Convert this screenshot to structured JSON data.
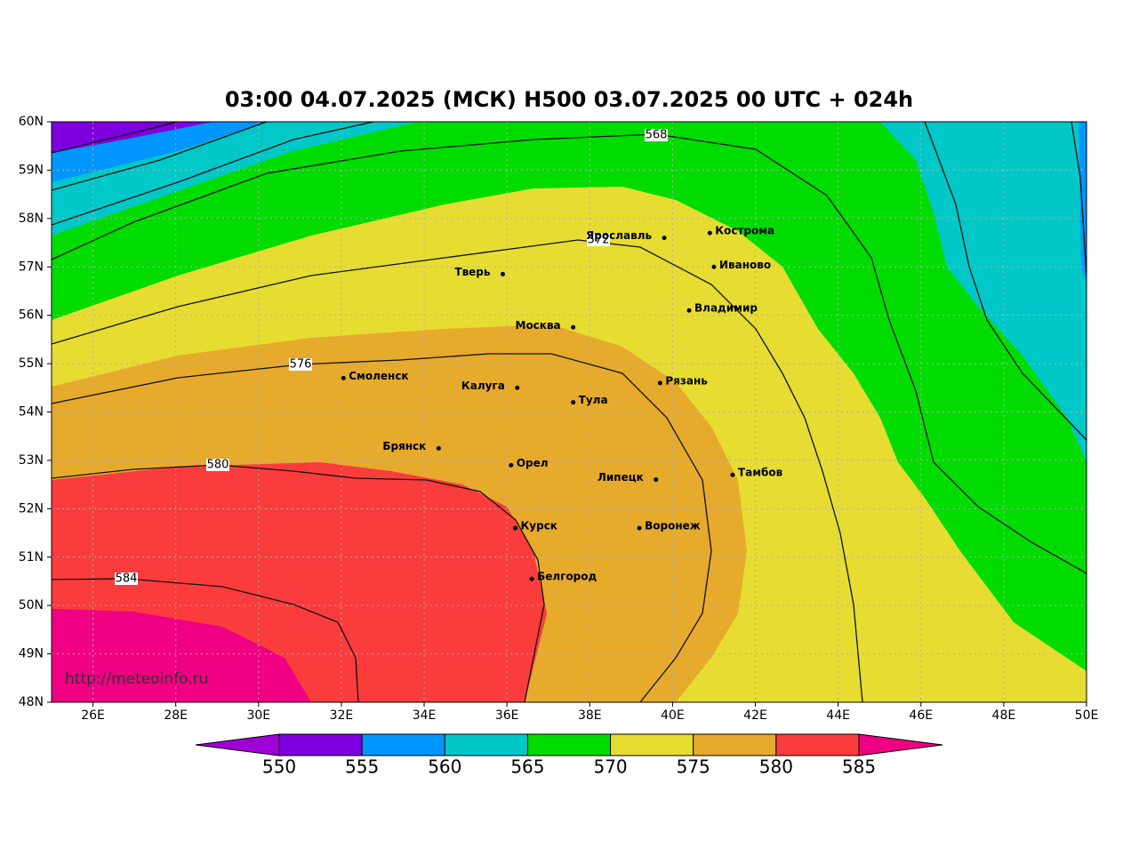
{
  "title": "03:00 04.07.2025 (МСК) H500  03.07.2025 00 UTC + 024h",
  "watermark": "http://meteoinfo.ru",
  "map": {
    "lonlim": [
      25,
      50
    ],
    "latlim": [
      48,
      60
    ],
    "lon_ticks": [
      {
        "value": 26,
        "label": "26E"
      },
      {
        "value": 28,
        "label": "28E"
      },
      {
        "value": 30,
        "label": "30E"
      },
      {
        "value": 32,
        "label": "32E"
      },
      {
        "value": 34,
        "label": "34E"
      },
      {
        "value": 36,
        "label": "36E"
      },
      {
        "value": 38,
        "label": "38E"
      },
      {
        "value": 40,
        "label": "40E"
      },
      {
        "value": 42,
        "label": "42E"
      },
      {
        "value": 44,
        "label": "44E"
      },
      {
        "value": 46,
        "label": "46E"
      },
      {
        "value": 48,
        "label": "48E"
      },
      {
        "value": 50,
        "label": "50E"
      }
    ],
    "lat_ticks": [
      {
        "value": 48,
        "label": "48N"
      },
      {
        "value": 49,
        "label": "49N"
      },
      {
        "value": 50,
        "label": "50N"
      },
      {
        "value": 51,
        "label": "51N"
      },
      {
        "value": 52,
        "label": "52N"
      },
      {
        "value": 53,
        "label": "53N"
      },
      {
        "value": 54,
        "label": "54N"
      },
      {
        "value": 55,
        "label": "55N"
      },
      {
        "value": 56,
        "label": "56N"
      },
      {
        "value": 57,
        "label": "57N"
      },
      {
        "value": 58,
        "label": "58N"
      },
      {
        "value": 59,
        "label": "59N"
      },
      {
        "value": 60,
        "label": "60N"
      }
    ],
    "grid": true,
    "contours": [
      568,
      572,
      576,
      580,
      584
    ],
    "cities": [
      {
        "name": "Ярославль",
        "lon": 39.8,
        "lat": 57.6
      },
      {
        "name": "Кострома",
        "lon": 40.9,
        "lat": 57.7
      },
      {
        "name": "Иваново",
        "lon": 41.0,
        "lat": 57.0
      },
      {
        "name": "Тверь",
        "lon": 35.9,
        "lat": 56.85
      },
      {
        "name": "Владимир",
        "lon": 40.4,
        "lat": 56.1
      },
      {
        "name": "Москва",
        "lon": 37.6,
        "lat": 55.75
      },
      {
        "name": "Смоленск",
        "lon": 32.05,
        "lat": 54.7
      },
      {
        "name": "Калуга",
        "lon": 36.25,
        "lat": 54.5
      },
      {
        "name": "Рязань",
        "lon": 39.7,
        "lat": 54.6
      },
      {
        "name": "Тула",
        "lon": 37.6,
        "lat": 54.2
      },
      {
        "name": "Брянск",
        "lon": 34.35,
        "lat": 53.25
      },
      {
        "name": "Орел",
        "lon": 36.1,
        "lat": 52.9
      },
      {
        "name": "Липецк",
        "lon": 39.6,
        "lat": 52.6
      },
      {
        "name": "Тамбов",
        "lon": 41.45,
        "lat": 52.7
      },
      {
        "name": "Курск",
        "lon": 36.2,
        "lat": 51.6
      },
      {
        "name": "Воронеж",
        "lon": 39.2,
        "lat": 51.6
      },
      {
        "name": "Белгород",
        "lon": 36.6,
        "lat": 50.55
      }
    ]
  },
  "colorbar": {
    "levels": [
      550,
      555,
      560,
      565,
      570,
      575,
      580,
      585
    ],
    "colors": [
      "#a000d8",
      "#7e00e0",
      "#0096ff",
      "#00c8c8",
      "#00dc00",
      "#e6dc32",
      "#e6aa2d",
      "#fa3c3c",
      "#f00082"
    ]
  }
}
